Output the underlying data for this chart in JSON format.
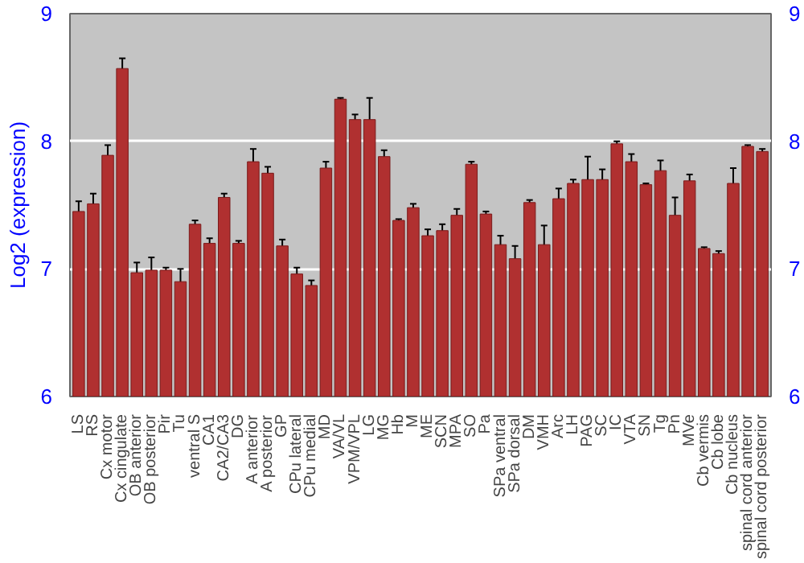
{
  "chart_data": {
    "type": "bar",
    "ylabel": "Log2 (expression)",
    "categories": [
      "LS",
      "RS",
      "Cx motor",
      "Cx cingulate",
      "OB anterior",
      "OB posterior",
      "Pir",
      "Tu",
      "ventral S",
      "CA1",
      "CA2/CA3",
      "DG",
      "A anterior",
      "A posterior",
      "GP",
      "CPu lateral",
      "CPu medial",
      "MD",
      "VA/VL",
      "VPM/VPL",
      "LG",
      "MG",
      "Hb",
      "M",
      "ME",
      "SCN",
      "MPA",
      "SO",
      "Pa",
      "SPa ventral",
      "SPa dorsal",
      "DM",
      "VMH",
      "Arc",
      "LH",
      "PAG",
      "SC",
      "IC",
      "VTA",
      "SN",
      "Tg",
      "Pn",
      "MVe",
      "Cb vermis",
      "Cb lobe",
      "Cb nucleus",
      "spinal cord anterior",
      "spinal cord posterior"
    ],
    "values": [
      7.45,
      7.51,
      7.89,
      8.57,
      6.97,
      6.99,
      6.99,
      6.9,
      7.35,
      7.2,
      7.56,
      7.2,
      7.84,
      7.75,
      7.18,
      6.96,
      6.87,
      7.79,
      8.33,
      8.17,
      8.17,
      7.88,
      7.38,
      7.48,
      7.26,
      7.3,
      7.42,
      7.82,
      7.43,
      7.19,
      7.08,
      7.52,
      7.19,
      7.55,
      7.67,
      7.7,
      7.7,
      7.98,
      7.84,
      7.66,
      7.77,
      7.42,
      7.69,
      7.16,
      7.12,
      7.67,
      7.96,
      7.92
    ],
    "errors": [
      0.08,
      0.08,
      0.08,
      0.08,
      0.08,
      0.1,
      0.02,
      0.1,
      0.03,
      0.04,
      0.03,
      0.02,
      0.1,
      0.05,
      0.05,
      0.05,
      0.04,
      0.05,
      0.01,
      0.04,
      0.17,
      0.05,
      0.01,
      0.03,
      0.05,
      0.05,
      0.05,
      0.02,
      0.02,
      0.07,
      0.1,
      0.02,
      0.15,
      0.08,
      0.03,
      0.18,
      0.08,
      0.02,
      0.06,
      0.01,
      0.08,
      0.14,
      0.05,
      0.01,
      0.02,
      0.12,
      0.01,
      0.02
    ],
    "color": "#b03030",
    "ylim": [
      6,
      9
    ],
    "yticks": [
      6,
      7,
      8,
      9
    ],
    "y2lim": [
      6,
      9
    ],
    "y2ticks": [
      6,
      7,
      8,
      9
    ],
    "grid": "y"
  }
}
